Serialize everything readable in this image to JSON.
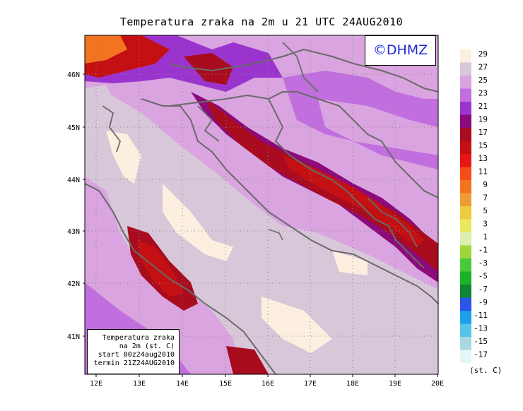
{
  "title": "Temperatura zraka na 2m u 21 UTC 24AUG2010",
  "logo": "©DHMZ",
  "info_box": {
    "line1": "Temperatura zraka",
    "line2": "na 2m (st. C)",
    "line3": "start 00z24aug2010",
    "line4": "termin 21Z24AUG2010"
  },
  "legend": {
    "unit": "(st. C)",
    "labels": [
      "29",
      "27",
      "25",
      "23",
      "21",
      "19",
      "17",
      "15",
      "13",
      "11",
      "9",
      "7",
      "5",
      "3",
      "1",
      "-1",
      "-3",
      "-5",
      "-7",
      "-9",
      "-11",
      "-13",
      "-15",
      "-17"
    ],
    "colors": [
      "#fcefe0",
      "#d7c7d9",
      "#d9a4df",
      "#c16ede",
      "#9b34cf",
      "#8c0a7a",
      "#a80c1e",
      "#c41012",
      "#e61617",
      "#f44d15",
      "#f27420",
      "#ee9d35",
      "#eecb3f",
      "#e9e85e",
      "#dbeeaf",
      "#a0d63b",
      "#4ac93a",
      "#1eb12a",
      "#108532",
      "#2a55e8",
      "#1c9ee8",
      "#56c3e7",
      "#a9d8e2",
      "#e5f6f6"
    ]
  },
  "axes": {
    "x_ticks": [
      "12E",
      "13E",
      "14E",
      "15E",
      "16E",
      "17E",
      "18E",
      "19E",
      "20E"
    ],
    "y_ticks": [
      "46N",
      "45N",
      "44N",
      "43N",
      "42N",
      "41N"
    ]
  }
}
